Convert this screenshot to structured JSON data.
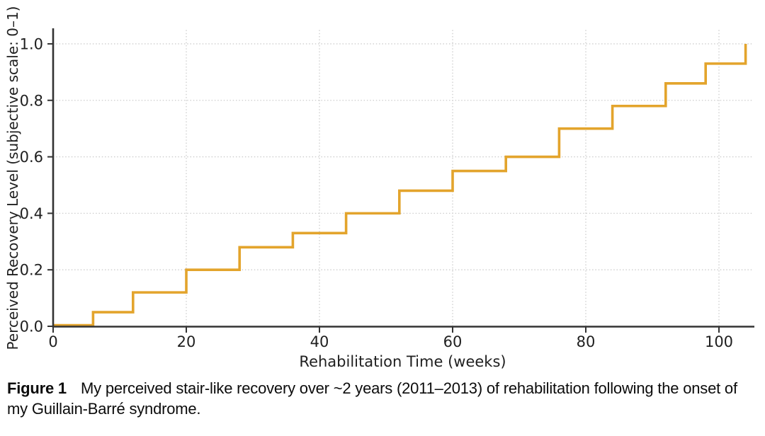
{
  "figure": {
    "caption_label": "Figure 1",
    "caption_text": "My perceived stair-like recovery over ~2 years (2011–2013) of rehabilitation following the onset of my Guillain-Barré syndrome."
  },
  "chart_data": {
    "type": "line",
    "step_style": "post",
    "title": "",
    "xlabel": "Rehabilitation Time (weeks)",
    "ylabel": "Perceived Recovery Level (subjective scale: 0–1)",
    "x": [
      0,
      6,
      12,
      20,
      28,
      36,
      44,
      52,
      60,
      68,
      76,
      84,
      92,
      98,
      104
    ],
    "y": [
      0,
      0.05,
      0.12,
      0.2,
      0.28,
      0.33,
      0.4,
      0.48,
      0.55,
      0.6,
      0.7,
      0.78,
      0.86,
      0.93,
      1.0
    ],
    "xlim": [
      0,
      105
    ],
    "ylim": [
      0,
      1.05
    ],
    "xticks": [
      0,
      20,
      40,
      60,
      80,
      100
    ],
    "xtick_labels": [
      "0",
      "20",
      "40",
      "60",
      "80",
      "100"
    ],
    "yticks": [
      0.0,
      0.2,
      0.4,
      0.6,
      0.8,
      1.0
    ],
    "ytick_labels": [
      "0.0",
      "0.2",
      "0.4",
      "0.6",
      "0.8",
      "1.0"
    ],
    "grid": true,
    "legend": "none",
    "line_color": "#E3A42C",
    "grid_color": "#cdcdcd",
    "axis_color": "#333333",
    "tick_label_color": "#1f1f1f"
  }
}
